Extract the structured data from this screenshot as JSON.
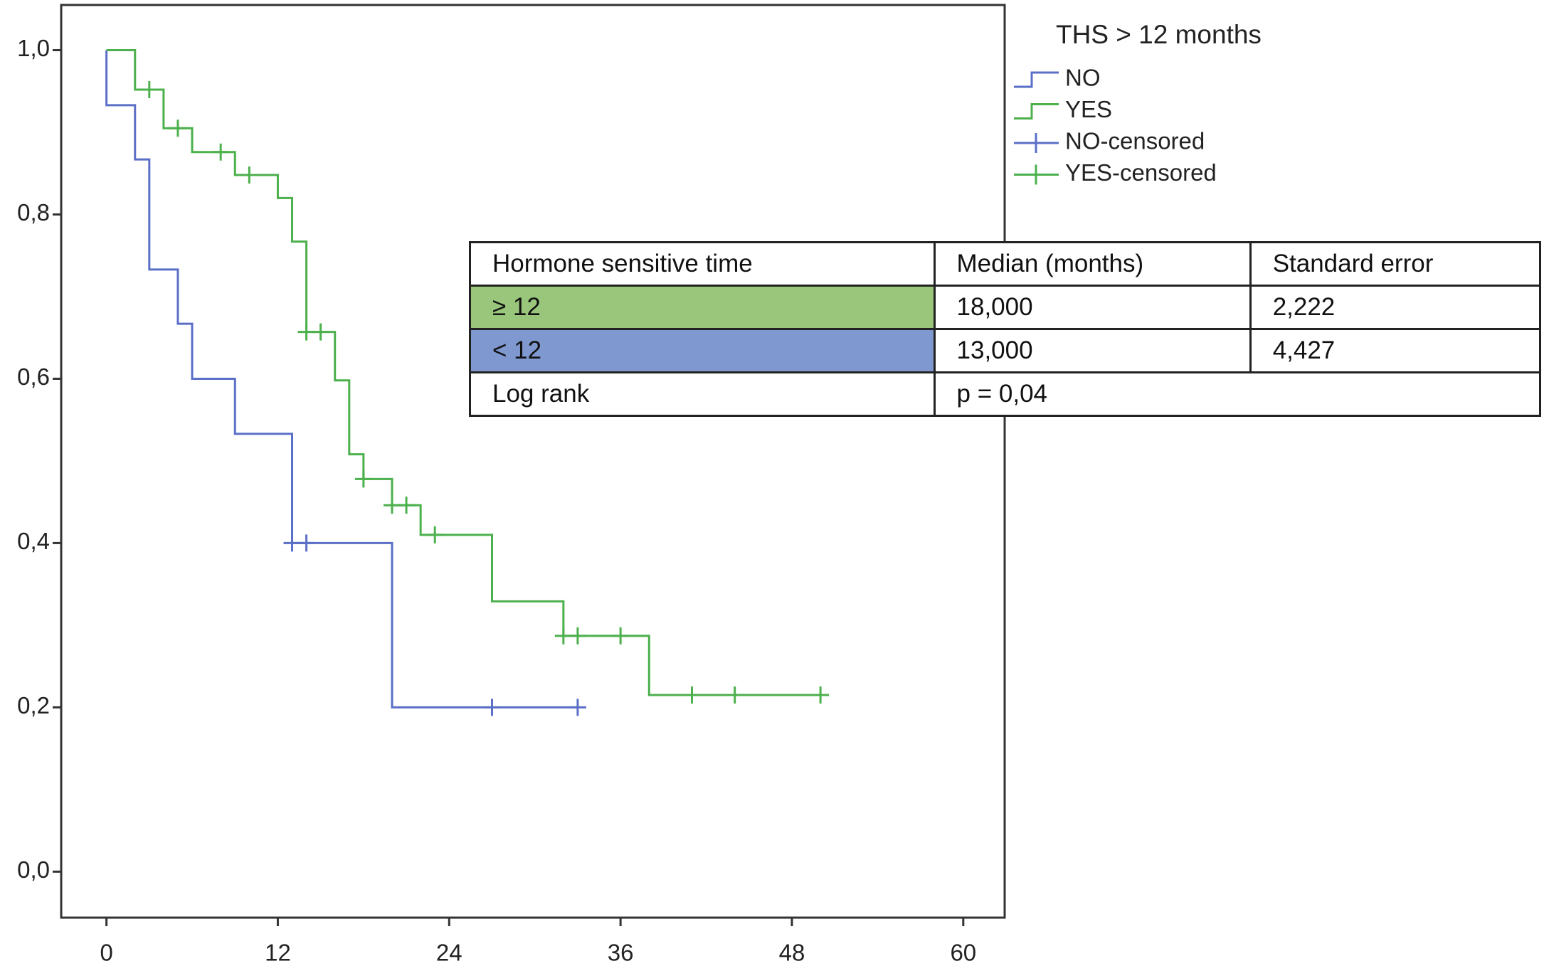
{
  "chart_data": {
    "type": "step",
    "xlim": [
      -3.17,
      62.9
    ],
    "ylim": [
      -0.056,
      1.055
    ],
    "xticks": [
      0,
      12,
      24,
      36,
      48,
      60
    ],
    "yticks": [
      {
        "value": 0.0,
        "label": "0,0"
      },
      {
        "value": 0.2,
        "label": "0,2"
      },
      {
        "value": 0.4,
        "label": "0,4"
      },
      {
        "value": 0.6,
        "label": "0,6"
      },
      {
        "value": 0.8,
        "label": "0,8"
      },
      {
        "value": 1.0,
        "label": "1,0"
      }
    ],
    "legend_title": "THS > 12 months",
    "legend": "top-right",
    "series": [
      {
        "name": "NO",
        "color": "#5b6fc7",
        "x": [
          0,
          0,
          2,
          3,
          5,
          6,
          9,
          13,
          20,
          33
        ],
        "values": [
          1.0,
          0.933,
          0.867,
          0.733,
          0.667,
          0.6,
          0.533,
          0.4,
          0.2,
          0.2
        ]
      },
      {
        "name": "YES",
        "color": "#4cb04c",
        "x": [
          0,
          2,
          4,
          6,
          9,
          12,
          13,
          14,
          16,
          17,
          18,
          20,
          22,
          27,
          32,
          38,
          50
        ],
        "values": [
          1.0,
          0.952,
          0.905,
          0.876,
          0.848,
          0.82,
          0.767,
          0.657,
          0.598,
          0.508,
          0.478,
          0.446,
          0.41,
          0.329,
          0.287,
          0.215,
          0.215
        ]
      },
      {
        "name": "NO-censored",
        "color": "#5b6fc7",
        "x": [
          13,
          14,
          27,
          33
        ],
        "values": [
          0.4,
          0.4,
          0.2,
          0.2
        ]
      },
      {
        "name": "YES-censored",
        "color": "#4cb04c",
        "x": [
          3,
          5,
          8,
          10,
          14,
          15,
          18,
          20,
          21,
          23,
          32,
          33,
          36,
          41,
          44,
          50
        ],
        "values": [
          0.952,
          0.905,
          0.876,
          0.848,
          0.657,
          0.657,
          0.478,
          0.446,
          0.446,
          0.41,
          0.287,
          0.287,
          0.287,
          0.215,
          0.215,
          0.215
        ]
      }
    ]
  },
  "table": {
    "header": [
      "Hormone sensitive time",
      "Median (months)",
      "Standard error"
    ],
    "rows": [
      [
        "≥ 12",
        "18,000",
        "2,222"
      ],
      [
        "< 12",
        "13,000",
        "4,427"
      ],
      [
        "Log rank",
        "p = 0,04"
      ]
    ],
    "row_colors": [
      "#9ac67c",
      "#7f98cf",
      "#ffffff"
    ]
  }
}
